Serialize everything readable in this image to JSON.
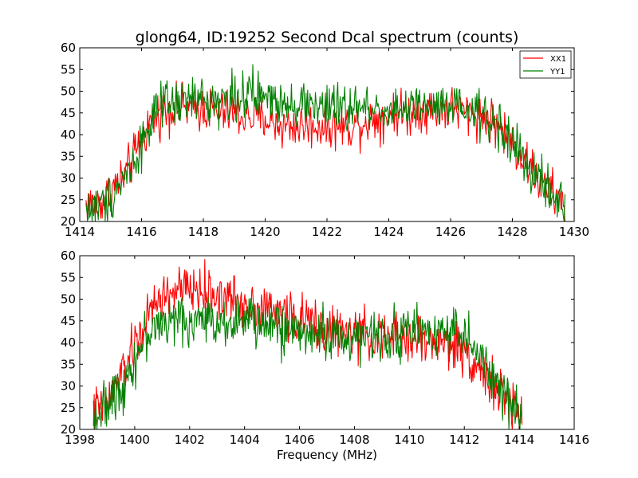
{
  "chart_data": [
    {
      "type": "line",
      "title": "glong64, ID:19252 Second Dcal spectrum (counts)",
      "xlabel": "",
      "ylabel": "",
      "xlim": [
        1414,
        1430
      ],
      "ylim": [
        20,
        60
      ],
      "xticks": [
        "1414",
        "1416",
        "1418",
        "1420",
        "1422",
        "1424",
        "1426",
        "1428",
        "1430"
      ],
      "yticks": [
        "20",
        "25",
        "30",
        "35",
        "40",
        "45",
        "50",
        "55",
        "60"
      ],
      "legend": "top-right",
      "x_range": [
        1414.2,
        1429.7
      ],
      "series": [
        {
          "name": "XX1",
          "color": "#ff0000",
          "x": [
            1414.2,
            1414.5,
            1414.8,
            1415.1,
            1415.4,
            1415.7,
            1416.0,
            1416.3,
            1416.6,
            1416.9,
            1417.2,
            1417.5,
            1417.8,
            1418.1,
            1418.4,
            1418.7,
            1419.0,
            1419.3,
            1419.6,
            1419.9,
            1420.2,
            1420.5,
            1420.8,
            1421.1,
            1421.4,
            1421.7,
            1422.0,
            1422.3,
            1422.6,
            1422.9,
            1423.2,
            1423.5,
            1423.8,
            1424.1,
            1424.4,
            1424.7,
            1425.0,
            1425.3,
            1425.6,
            1425.9,
            1426.2,
            1426.5,
            1426.8,
            1427.1,
            1427.4,
            1427.7,
            1428.0,
            1428.3,
            1428.6,
            1428.9,
            1429.2,
            1429.5,
            1429.7
          ],
          "values": [
            24,
            24,
            25,
            28,
            30,
            34,
            39,
            43,
            45,
            46,
            46,
            46,
            46,
            46,
            45,
            45,
            45,
            44,
            44,
            44,
            43,
            42,
            42,
            42,
            42,
            42,
            42,
            42,
            42,
            42,
            43,
            44,
            44,
            45,
            45,
            45,
            46,
            46,
            46,
            46,
            46,
            45,
            45,
            44,
            43,
            41,
            38,
            35,
            32,
            29,
            27,
            25,
            24
          ],
          "noise": 2.6
        },
        {
          "name": "YY1",
          "color": "#008000",
          "x": [
            1414.2,
            1414.5,
            1414.8,
            1415.1,
            1415.4,
            1415.7,
            1416.0,
            1416.3,
            1416.6,
            1416.9,
            1417.2,
            1417.5,
            1417.8,
            1418.1,
            1418.4,
            1418.7,
            1419.0,
            1419.3,
            1419.6,
            1419.9,
            1420.2,
            1420.5,
            1420.8,
            1421.1,
            1421.4,
            1421.7,
            1422.0,
            1422.3,
            1422.6,
            1422.9,
            1423.2,
            1423.5,
            1423.8,
            1424.1,
            1424.4,
            1424.7,
            1425.0,
            1425.3,
            1425.6,
            1425.9,
            1426.2,
            1426.5,
            1426.8,
            1427.1,
            1427.4,
            1427.7,
            1428.0,
            1428.3,
            1428.6,
            1428.9,
            1429.2,
            1429.5,
            1429.7
          ],
          "values": [
            23,
            23,
            24,
            27,
            30,
            33,
            38,
            43,
            46,
            47,
            47,
            48,
            48,
            48,
            48,
            48,
            49,
            49,
            49,
            49,
            48,
            48,
            48,
            47,
            47,
            47,
            46,
            46,
            46,
            46,
            46,
            46,
            46,
            46,
            46,
            46,
            46,
            46,
            46,
            46,
            46,
            45,
            45,
            44,
            43,
            41,
            38,
            35,
            32,
            29,
            27,
            24,
            23
          ],
          "noise": 2.7
        }
      ]
    },
    {
      "type": "line",
      "title": "",
      "xlabel": "Frequency (MHz)",
      "ylabel": "",
      "xlim": [
        1398,
        1416
      ],
      "ylim": [
        20,
        60
      ],
      "xticks": [
        "1398",
        "1400",
        "1402",
        "1404",
        "1406",
        "1408",
        "1410",
        "1412",
        "1414",
        "1416"
      ],
      "yticks": [
        "20",
        "25",
        "30",
        "35",
        "40",
        "45",
        "50",
        "55",
        "60"
      ],
      "x_range": [
        1398.5,
        1414.1
      ],
      "series": [
        {
          "name": "XX1",
          "color": "#ff0000",
          "x": [
            1398.5,
            1398.8,
            1399.1,
            1399.4,
            1399.7,
            1400.0,
            1400.3,
            1400.6,
            1400.9,
            1401.2,
            1401.5,
            1401.8,
            1402.1,
            1402.4,
            1402.7,
            1403.0,
            1403.3,
            1403.6,
            1403.9,
            1404.2,
            1404.5,
            1404.8,
            1405.1,
            1405.4,
            1405.7,
            1406.0,
            1406.3,
            1406.6,
            1406.9,
            1407.2,
            1407.5,
            1407.8,
            1408.1,
            1408.4,
            1408.7,
            1409.0,
            1409.3,
            1409.6,
            1409.9,
            1410.2,
            1410.5,
            1410.8,
            1411.1,
            1411.4,
            1411.7,
            1412.0,
            1412.3,
            1412.6,
            1412.9,
            1413.2,
            1413.5,
            1413.8,
            1414.1
          ],
          "values": [
            24,
            25,
            27,
            31,
            35,
            39,
            43,
            47,
            50,
            51,
            52,
            52,
            52,
            52,
            51,
            51,
            50,
            50,
            49,
            49,
            48,
            48,
            47,
            47,
            46,
            45,
            45,
            44,
            43,
            43,
            42,
            42,
            42,
            42,
            41,
            41,
            41,
            41,
            41,
            41,
            40,
            40,
            40,
            40,
            39,
            38,
            36,
            34,
            31,
            29,
            27,
            25,
            24
          ],
          "noise": 2.8
        },
        {
          "name": "YY1",
          "color": "#008000",
          "x": [
            1398.5,
            1398.8,
            1399.1,
            1399.4,
            1399.7,
            1400.0,
            1400.3,
            1400.6,
            1400.9,
            1401.2,
            1401.5,
            1401.8,
            1402.1,
            1402.4,
            1402.7,
            1403.0,
            1403.3,
            1403.6,
            1403.9,
            1404.2,
            1404.5,
            1404.8,
            1405.1,
            1405.4,
            1405.7,
            1406.0,
            1406.3,
            1406.6,
            1406.9,
            1407.2,
            1407.5,
            1407.8,
            1408.1,
            1408.4,
            1408.7,
            1409.0,
            1409.3,
            1409.6,
            1409.9,
            1410.2,
            1410.5,
            1410.8,
            1411.1,
            1411.4,
            1411.7,
            1412.0,
            1412.3,
            1412.6,
            1412.9,
            1413.2,
            1413.5,
            1413.8,
            1414.1
          ],
          "values": [
            24,
            24,
            26,
            29,
            32,
            36,
            40,
            43,
            44,
            45,
            45,
            45,
            45,
            45,
            45,
            45,
            45,
            45,
            45,
            45,
            44,
            44,
            44,
            43,
            43,
            43,
            42,
            42,
            42,
            42,
            41,
            41,
            41,
            41,
            41,
            42,
            42,
            42,
            43,
            43,
            43,
            43,
            43,
            43,
            43,
            42,
            39,
            36,
            33,
            30,
            27,
            25,
            24
          ],
          "noise": 2.8
        }
      ]
    }
  ]
}
